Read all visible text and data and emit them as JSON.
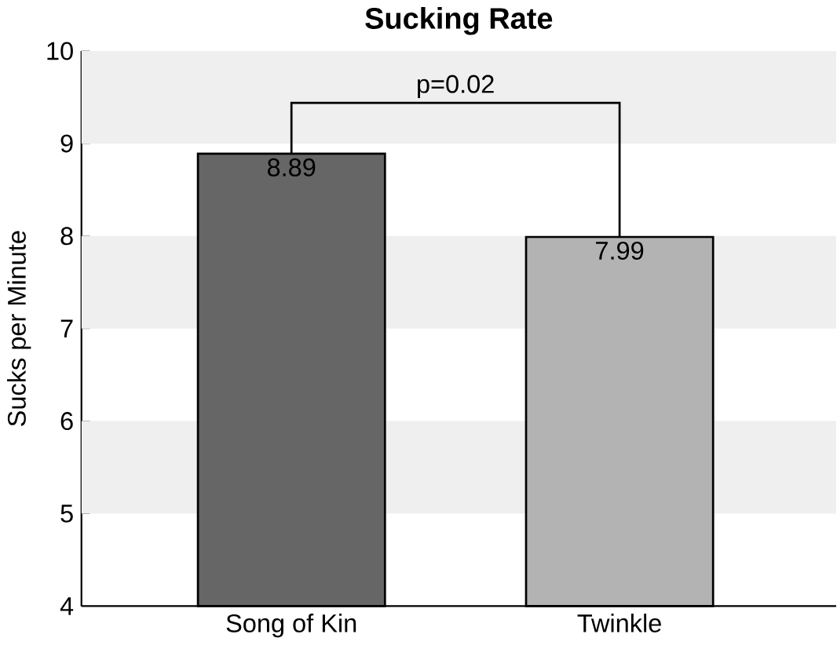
{
  "chart_data": {
    "type": "bar",
    "title": "Sucking Rate",
    "ylabel": "Sucks per Minute",
    "categories": [
      "Song of Kin",
      "Twinkle"
    ],
    "values": [
      8.89,
      7.99
    ],
    "colors": [
      "#666666",
      "#b3b3b3"
    ],
    "ylim": [
      4,
      10
    ],
    "yticks": [
      4,
      5,
      6,
      7,
      8,
      9,
      10
    ],
    "bands": [
      {
        "axis": "y",
        "from": 5,
        "to": 6,
        "color": "#efefef"
      },
      {
        "axis": "y",
        "from": 7,
        "to": 8,
        "color": "#efefef"
      },
      {
        "axis": "y",
        "from": 9,
        "to": 10,
        "color": "#efefef"
      }
    ],
    "annotations": [
      "p=0.02"
    ],
    "data_labels": true
  }
}
